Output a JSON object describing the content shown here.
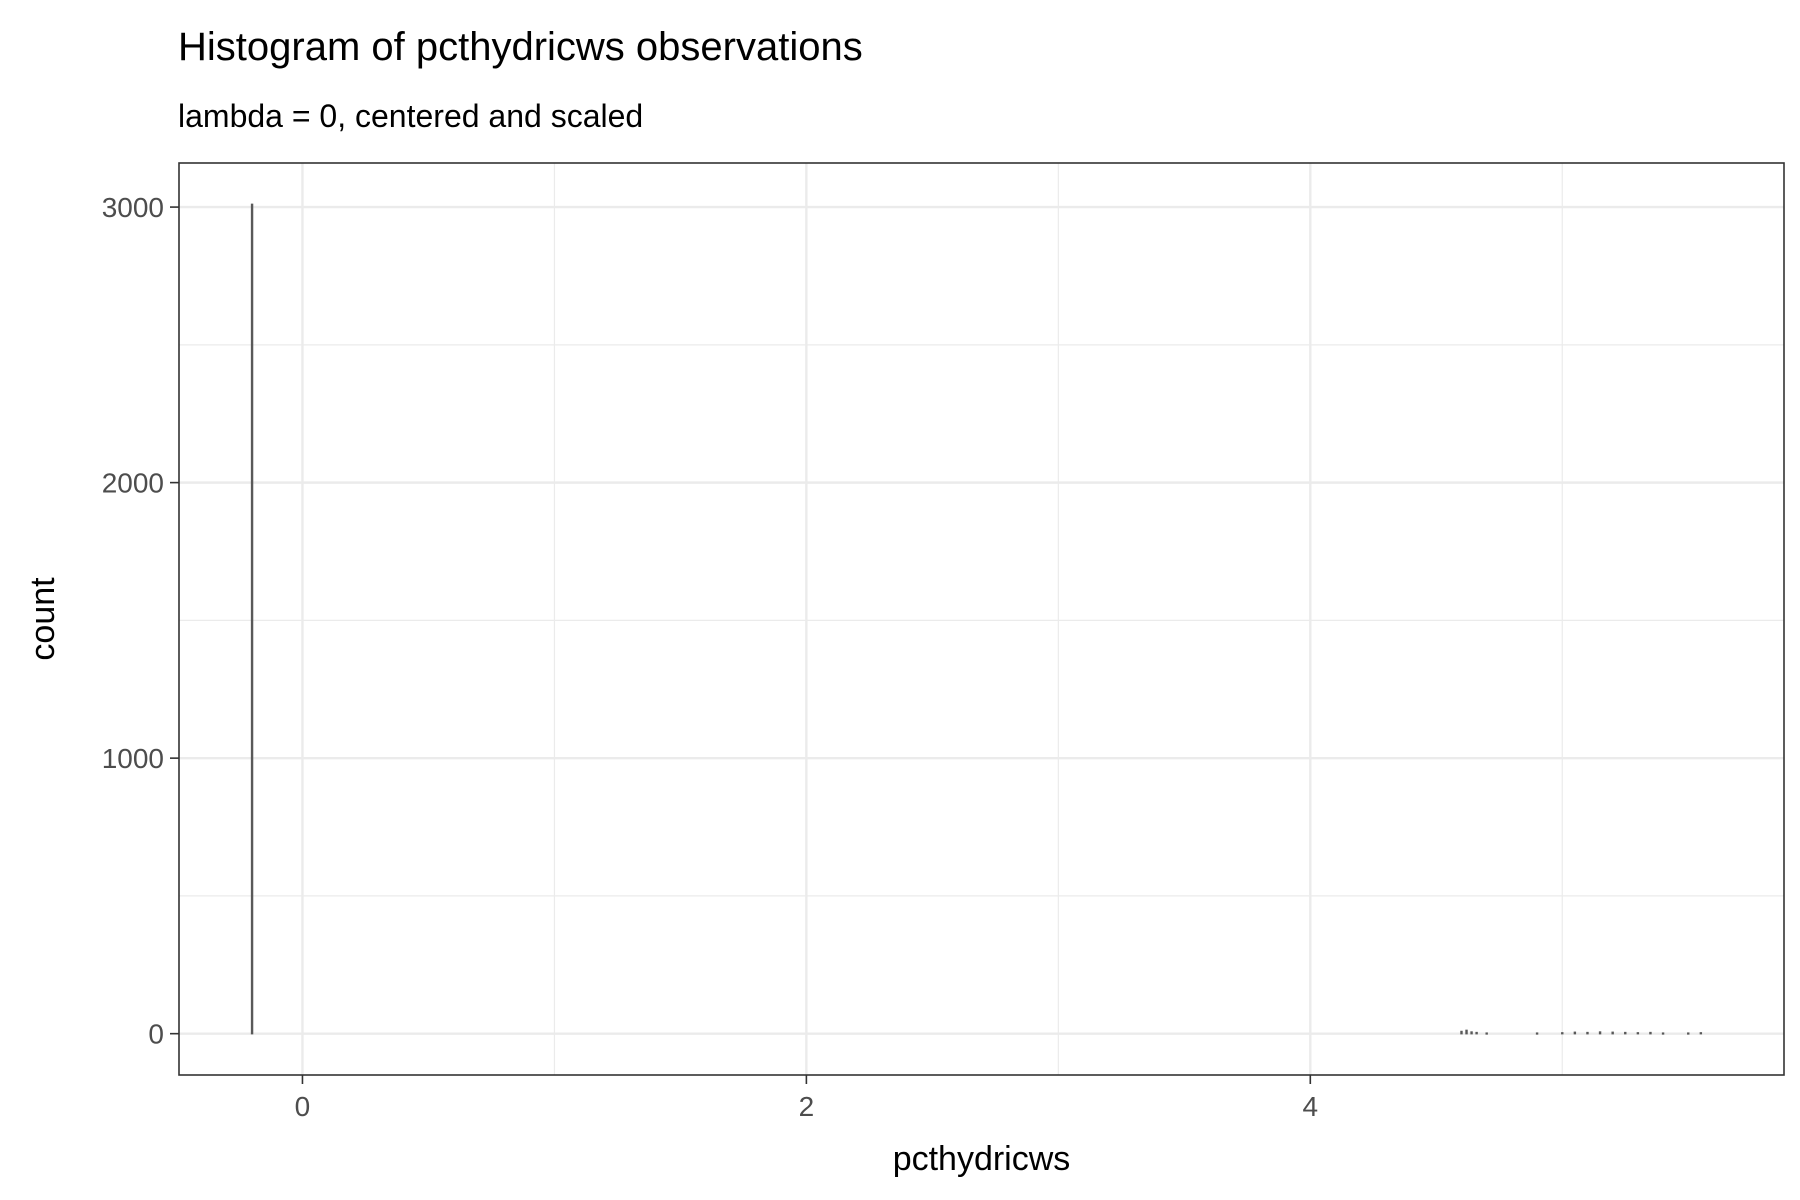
{
  "chart_data": {
    "type": "bar",
    "title": "Histogram of pcthydricws observations",
    "subtitle": "lambda = 0, centered and scaled",
    "xlabel": "pcthydricws",
    "ylabel": "count",
    "xlim": [
      -0.49,
      5.88
    ],
    "ylim": [
      -150,
      3160
    ],
    "x_ticks": [
      0,
      2,
      4
    ],
    "x_tick_labels": [
      "0",
      "2",
      "4"
    ],
    "y_ticks": [
      0,
      1000,
      2000,
      3000
    ],
    "y_tick_labels": [
      "0",
      "1000",
      "2000",
      "3000"
    ],
    "x_minor_ticks": [
      1,
      3,
      5
    ],
    "y_minor_ticks": [
      500,
      1500,
      2500
    ],
    "grid": true,
    "bar_color": "#595959",
    "bins": [
      {
        "x": -0.2,
        "count": 3010
      },
      {
        "x": 4.6,
        "count": 8
      },
      {
        "x": 4.62,
        "count": 12
      },
      {
        "x": 4.64,
        "count": 6
      },
      {
        "x": 4.66,
        "count": 4
      },
      {
        "x": 4.7,
        "count": 2
      },
      {
        "x": 4.9,
        "count": 2
      },
      {
        "x": 5.0,
        "count": 3
      },
      {
        "x": 5.05,
        "count": 5
      },
      {
        "x": 5.1,
        "count": 4
      },
      {
        "x": 5.15,
        "count": 6
      },
      {
        "x": 5.2,
        "count": 5
      },
      {
        "x": 5.25,
        "count": 4
      },
      {
        "x": 5.3,
        "count": 3
      },
      {
        "x": 5.35,
        "count": 4
      },
      {
        "x": 5.4,
        "count": 2
      },
      {
        "x": 5.5,
        "count": 2
      },
      {
        "x": 5.55,
        "count": 3
      }
    ]
  }
}
